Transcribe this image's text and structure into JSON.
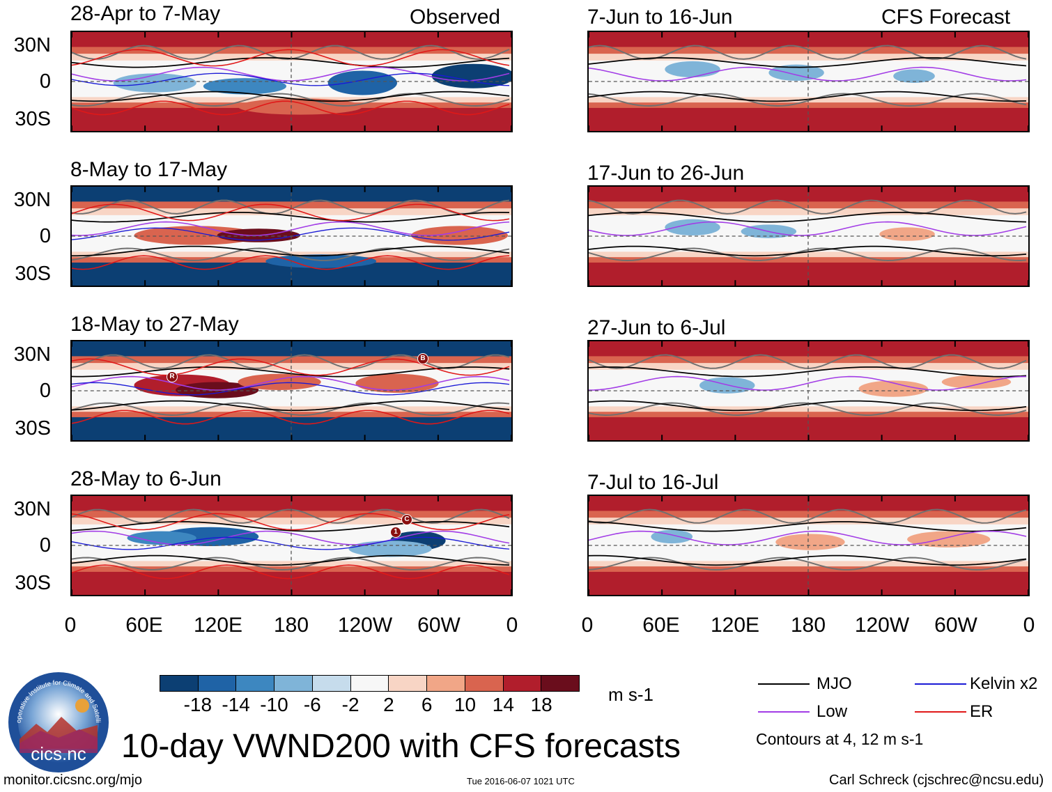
{
  "column_headers": {
    "left": "Observed",
    "right": "CFS Forecast"
  },
  "panels": [
    {
      "title": "28-Apr to 7-May",
      "kind": "observed"
    },
    {
      "title": "8-May to 17-May",
      "kind": "observed"
    },
    {
      "title": "18-May to 27-May",
      "kind": "observed"
    },
    {
      "title": "28-May to 6-Jun",
      "kind": "observed"
    },
    {
      "title": "7-Jun to 16-Jun",
      "kind": "forecast"
    },
    {
      "title": "17-Jun to 26-Jun",
      "kind": "forecast"
    },
    {
      "title": "27-Jun to 6-Jul",
      "kind": "forecast"
    },
    {
      "title": "7-Jul to 16-Jul",
      "kind": "forecast"
    }
  ],
  "lat_labels": [
    "30N",
    "0",
    "30S"
  ],
  "lon_labels": [
    "0",
    "60E",
    "120E",
    "180",
    "120W",
    "60W",
    "0"
  ],
  "event_markers": [
    {
      "panel": 2,
      "label": "R"
    },
    {
      "panel": 2,
      "label": "B"
    },
    {
      "panel": 3,
      "label": "1"
    },
    {
      "panel": 3,
      "label": "C"
    }
  ],
  "colorbar": {
    "colors": [
      "#0c3f73",
      "#1f63a6",
      "#3d87c0",
      "#7fb4d8",
      "#c6dcec",
      "#f7f7f7",
      "#f8d5c5",
      "#f1a687",
      "#d9644f",
      "#b11e2c",
      "#6a0d1c"
    ],
    "tick_labels": [
      "-18",
      "-14",
      "-10",
      "-6",
      "-2",
      "2",
      "6",
      "10",
      "14",
      "18"
    ],
    "unit": "m s-1"
  },
  "legend": {
    "items": [
      {
        "label": "MJO",
        "color": "#000000"
      },
      {
        "label": "Kelvin x2",
        "color": "#1a1ad6"
      },
      {
        "label": "Low",
        "color": "#a23ce6"
      },
      {
        "label": "ER",
        "color": "#e01818"
      }
    ],
    "note": "Contours at 4, 12 m s-1"
  },
  "logo": {
    "text": "cics.nc",
    "ring_text": "Cooperative Institute for Climate and Satellites"
  },
  "main_title": "10-day VWND200 with CFS forecasts",
  "footer": {
    "url": "monitor.cicsnc.org/mjo",
    "timestamp": "Tue 2016-06-07 1021 UTC",
    "credit": "Carl Schreck (cjschrec@ncsu.edu)"
  }
}
